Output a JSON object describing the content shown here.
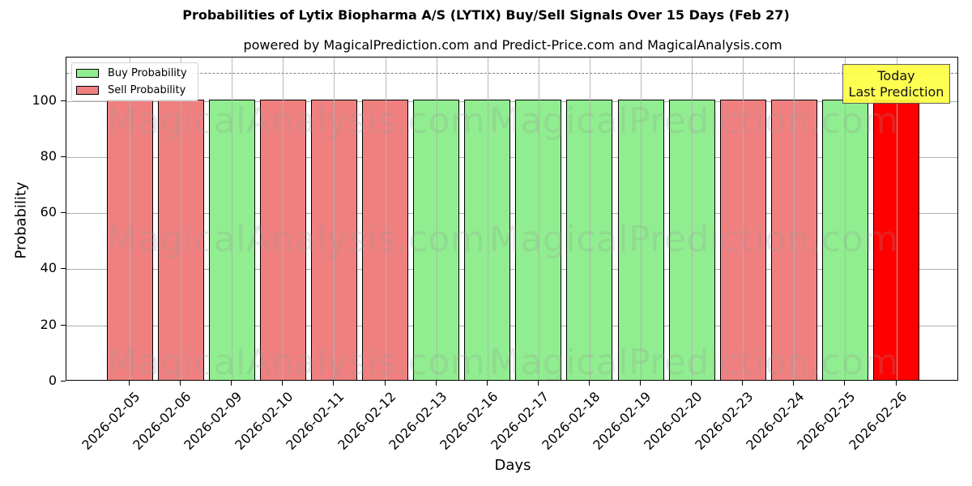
{
  "title": "Probabilities of Lytix Biopharma A/S (LYTIX) Buy/Sell Signals Over 15 Days (Feb 27)",
  "subtitle": "powered by MagicalPrediction.com and Predict-Price.com and MagicalAnalysis.com",
  "xlabel": "Days",
  "ylabel": "Probability",
  "legend": {
    "buy_label": "Buy Probability",
    "sell_label": "Sell Probability"
  },
  "annotation": {
    "line1": "Today",
    "line2": "Last Prediction"
  },
  "watermarks": [
    "MagicalAnalysis.com",
    "MagicalPrediction.com"
  ],
  "colors": {
    "buy": "#90ee90",
    "sell": "#f08080",
    "today": "#ff0000",
    "annotation_bg": "#ffff44",
    "threshold_line": "#808080"
  },
  "yticks": [
    0,
    20,
    40,
    60,
    80,
    100
  ],
  "chart_data": {
    "type": "bar",
    "title": "Probabilities of Lytix Biopharma A/S (LYTIX) Buy/Sell Signals Over 15 Days (Feb 27)",
    "subtitle": "powered by MagicalPrediction.com and Predict-Price.com and MagicalAnalysis.com",
    "xlabel": "Days",
    "ylabel": "Probability",
    "ylim": [
      0,
      115.5
    ],
    "grid": true,
    "legend_position": "upper left",
    "threshold_line": 110,
    "categories": [
      "2026-02-05",
      "2026-02-06",
      "2026-02-09",
      "2026-02-10",
      "2026-02-11",
      "2026-02-12",
      "2026-02-13",
      "2026-02-16",
      "2026-02-17",
      "2026-02-18",
      "2026-02-19",
      "2026-02-20",
      "2026-02-23",
      "2026-02-24",
      "2026-02-25",
      "2026-02-26"
    ],
    "values": [
      100,
      100,
      100,
      100,
      100,
      100,
      100,
      100,
      100,
      100,
      100,
      100,
      100,
      100,
      100,
      100
    ],
    "signals": [
      "Sell",
      "Sell",
      "Buy",
      "Sell",
      "Sell",
      "Sell",
      "Buy",
      "Buy",
      "Buy",
      "Buy",
      "Buy",
      "Buy",
      "Sell",
      "Sell",
      "Buy",
      "Sell"
    ],
    "series": [
      {
        "name": "Buy Probability",
        "values": [
          0,
          0,
          100,
          0,
          0,
          0,
          100,
          100,
          100,
          100,
          100,
          100,
          0,
          0,
          100,
          0
        ]
      },
      {
        "name": "Sell Probability",
        "values": [
          100,
          100,
          0,
          100,
          100,
          100,
          0,
          0,
          0,
          0,
          0,
          0,
          100,
          100,
          0,
          100
        ]
      }
    ],
    "annotations": [
      {
        "text": "Today\nLast Prediction",
        "x": "2026-02-26",
        "highlight_color": "#ff0000"
      }
    ]
  }
}
